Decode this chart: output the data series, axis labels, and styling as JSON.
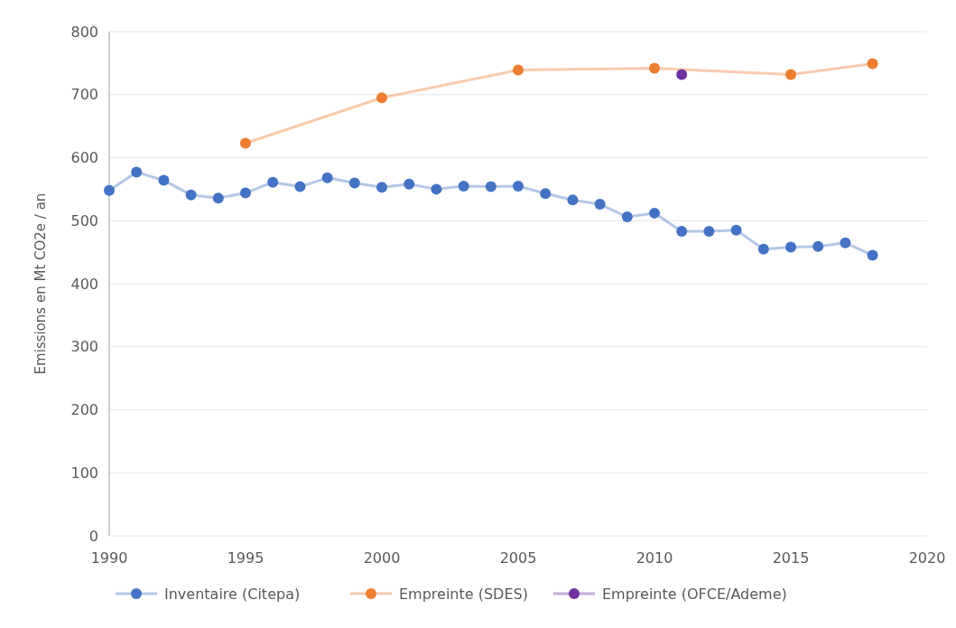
{
  "chart_data": {
    "type": "line",
    "ylabel": "Emissions en Mt CO2e / an",
    "xlim": [
      1990,
      2020
    ],
    "xticks": [
      1990,
      1995,
      2000,
      2005,
      2010,
      2015,
      2020
    ],
    "ylim": [
      0,
      800
    ],
    "yticks": [
      0,
      100,
      200,
      300,
      400,
      500,
      600,
      700,
      800
    ],
    "grid": "y",
    "legend": "bottom",
    "marker": "circle",
    "line_style": "solid",
    "series": [
      {
        "name": "Inventaire (Citepa)",
        "color": "#4472c4",
        "x": [
          1990,
          1991,
          1992,
          1993,
          1994,
          1995,
          1996,
          1997,
          1998,
          1999,
          2000,
          2001,
          2002,
          2003,
          2004,
          2005,
          2006,
          2007,
          2008,
          2009,
          2010,
          2011,
          2012,
          2013,
          2014,
          2015,
          2016,
          2017,
          2018
        ],
        "values": [
          548,
          577,
          564,
          541,
          536,
          544,
          561,
          554,
          568,
          560,
          553,
          558,
          550,
          555,
          554,
          555,
          543,
          533,
          526,
          506,
          512,
          483,
          483,
          485,
          455,
          458,
          459,
          465,
          445
        ]
      },
      {
        "name": "Empreinte (SDES)",
        "color": "#ed7d31",
        "x": [
          1995,
          2000,
          2005,
          2010,
          2015,
          2018
        ],
        "values": [
          623,
          695,
          739,
          742,
          732,
          749
        ]
      },
      {
        "name": "Empreinte (OFCE/Ademe)",
        "color": "#7030a0",
        "x": [
          2011
        ],
        "values": [
          732
        ]
      }
    ]
  }
}
